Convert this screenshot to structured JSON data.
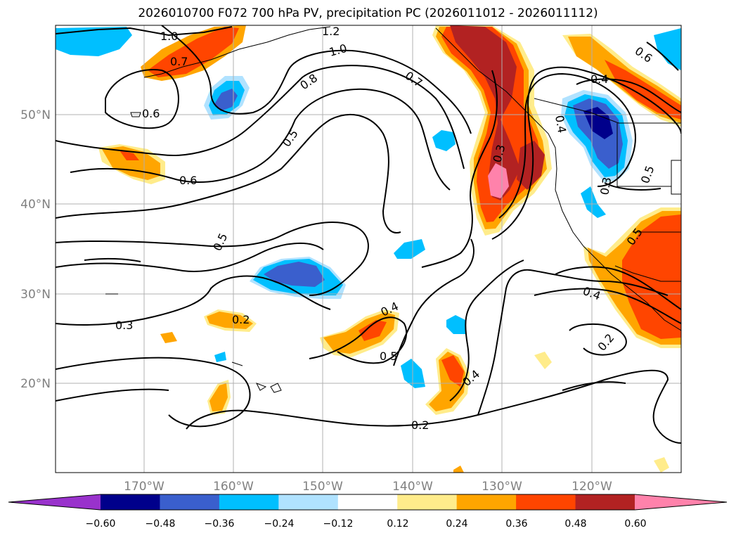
{
  "title": "2026010700 F072 700 hPa PV, precipitation PC (2026011012 - 2026011112)",
  "lat_labels": [
    "50°N",
    "40°N",
    "30°N",
    "20°N"
  ],
  "lon_labels": [
    "170°W",
    "160°W",
    "150°W",
    "140°W",
    "130°W",
    "120°W"
  ],
  "contour_labels": [
    "1.2",
    "1.0",
    "1.0",
    "0.8",
    "0.7",
    "0.7",
    "0.6",
    "0.6",
    "0.5",
    "0.5",
    "0.4",
    "0.4",
    "0.3",
    "0.3",
    "0.3",
    "0.2",
    "0.2",
    "0.2",
    "0.4",
    "0.5",
    "0.4",
    "0.5",
    "0.6",
    "0.5",
    "0.4"
  ],
  "colorbar": {
    "ticks": [
      "−0.60",
      "−0.48",
      "−0.36",
      "−0.24",
      "−0.12",
      "0.12",
      "0.24",
      "0.36",
      "0.48",
      "0.60"
    ],
    "colors": [
      "#9932cc",
      "#00008b",
      "#3a5fcd",
      "#00bfff",
      "#b0e2ff",
      "#ffffff",
      "#ffec8b",
      "#ffa500",
      "#ff4500",
      "#b22222",
      "#ff82ab"
    ]
  }
}
